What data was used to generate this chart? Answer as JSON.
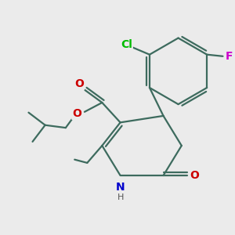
{
  "background_color": "#ebebeb",
  "line_color": "#3d6b5e",
  "bond_lw": 1.6,
  "atoms": {
    "Cl": {
      "color": "#00bb00",
      "fontsize": 10,
      "fontweight": "bold"
    },
    "F": {
      "color": "#cc00cc",
      "fontsize": 10,
      "fontweight": "bold"
    },
    "O": {
      "color": "#cc0000",
      "fontsize": 10,
      "fontweight": "bold"
    },
    "N": {
      "color": "#0000cc",
      "fontsize": 10,
      "fontweight": "bold"
    },
    "H": {
      "color": "#555555",
      "fontsize": 8,
      "fontweight": "normal"
    }
  }
}
